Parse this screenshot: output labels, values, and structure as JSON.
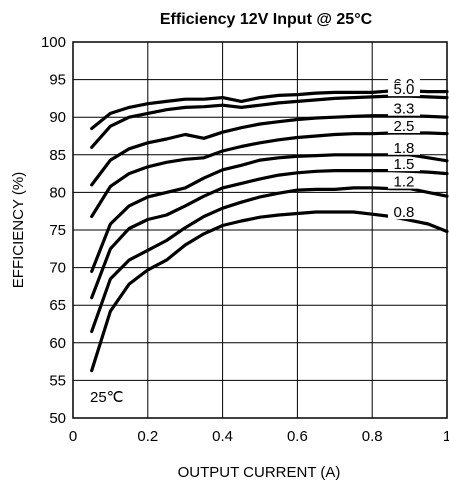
{
  "chart_data": {
    "type": "line",
    "title": "Efficiency 12V Input @ 25°C",
    "xlabel": "OUTPUT CURRENT (A)",
    "ylabel": "EFFICIENCY (%)",
    "xlim": [
      0,
      1
    ],
    "ylim": [
      50,
      100
    ],
    "xticks": [
      "0",
      "0.2",
      "0.4",
      "0.6",
      "0.8",
      "1"
    ],
    "yticks": [
      "50",
      "55",
      "60",
      "65",
      "70",
      "75",
      "80",
      "85",
      "90",
      "95",
      "100"
    ],
    "grid": true,
    "annotation": "25℃",
    "x": [
      0.05,
      0.1,
      0.15,
      0.2,
      0.25,
      0.3,
      0.35,
      0.4,
      0.45,
      0.5,
      0.55,
      0.6,
      0.65,
      0.7,
      0.75,
      0.8,
      0.85,
      0.9,
      0.95,
      1.0
    ],
    "series": [
      {
        "name": "6.0",
        "values": [
          88.5,
          90.5,
          91.3,
          91.8,
          92.1,
          92.4,
          92.4,
          92.6,
          92.1,
          92.6,
          92.9,
          93.0,
          93.2,
          93.3,
          93.3,
          93.3,
          93.5,
          93.5,
          93.4,
          93.4
        ]
      },
      {
        "name": "5.0",
        "values": [
          86.0,
          88.8,
          90.0,
          90.5,
          91.0,
          91.3,
          91.4,
          91.6,
          91.3,
          91.6,
          91.9,
          92.1,
          92.3,
          92.5,
          92.6,
          92.7,
          92.8,
          92.8,
          92.7,
          92.6
        ]
      },
      {
        "name": "3.3",
        "values": [
          81.0,
          84.3,
          85.8,
          86.6,
          87.1,
          87.7,
          87.2,
          88.0,
          88.6,
          89.1,
          89.4,
          89.7,
          89.9,
          90.0,
          90.1,
          90.2,
          90.2,
          90.2,
          90.1,
          90.0
        ]
      },
      {
        "name": "2.5",
        "values": [
          76.8,
          80.8,
          82.5,
          83.4,
          84.0,
          84.4,
          84.6,
          85.5,
          86.1,
          86.6,
          87.0,
          87.3,
          87.5,
          87.7,
          87.8,
          87.8,
          87.9,
          87.9,
          87.9,
          87.8
        ]
      },
      {
        "name": "1.8",
        "values": [
          69.5,
          75.8,
          78.2,
          79.4,
          80.0,
          80.6,
          81.9,
          83.0,
          83.6,
          84.3,
          84.6,
          84.8,
          84.9,
          85.0,
          85.0,
          85.0,
          85.0,
          85.0,
          84.6,
          84.2
        ]
      },
      {
        "name": "1.5",
        "values": [
          66.0,
          72.5,
          75.2,
          76.4,
          77.0,
          78.2,
          79.5,
          80.6,
          81.2,
          81.8,
          82.3,
          82.6,
          82.8,
          82.9,
          82.9,
          82.9,
          82.9,
          82.8,
          82.7,
          82.5
        ]
      },
      {
        "name": "1.2",
        "values": [
          61.5,
          68.5,
          71.0,
          72.3,
          73.6,
          75.3,
          76.8,
          77.9,
          78.7,
          79.4,
          79.9,
          80.3,
          80.4,
          80.4,
          80.6,
          80.6,
          80.5,
          80.5,
          80.0,
          79.5
        ]
      },
      {
        "name": "0.8",
        "values": [
          56.3,
          64.2,
          67.8,
          69.7,
          71.0,
          73.0,
          74.5,
          75.6,
          76.2,
          76.7,
          77.0,
          77.2,
          77.4,
          77.4,
          77.4,
          77.1,
          76.8,
          76.3,
          75.8,
          74.8
        ]
      }
    ]
  }
}
